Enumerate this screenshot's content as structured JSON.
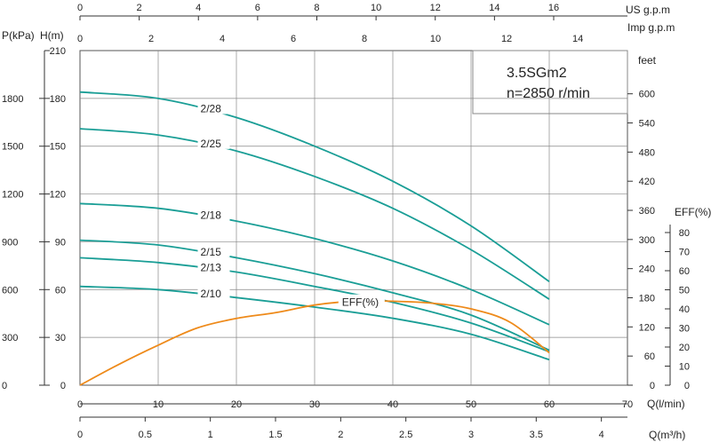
{
  "chart_data": {
    "type": "line",
    "model": "3.5SGm2",
    "speed": "n=2850 r/min",
    "x_primary": {
      "label": "Q(l/min)",
      "range": [
        0,
        70
      ],
      "ticks": [
        "0",
        "10",
        "20",
        "30",
        "40",
        "50",
        "60",
        "70"
      ]
    },
    "x_m3h": {
      "label": "Q(m³/h)",
      "range": [
        0,
        4.2
      ],
      "ticks": [
        "0",
        "0.5",
        "1",
        "1.5",
        "2",
        "2.5",
        "3",
        "3.5",
        "4"
      ]
    },
    "x_us": {
      "label": "US  g.p.m",
      "range": [
        0,
        18.5
      ],
      "ticks": [
        "0",
        "2",
        "4",
        "6",
        "8",
        "10",
        "12",
        "14",
        "16"
      ]
    },
    "x_imp": {
      "label": "Imp  g.p.m",
      "range": [
        0,
        15.4
      ],
      "ticks": [
        "0",
        "2",
        "4",
        "6",
        "8",
        "10",
        "12",
        "14"
      ]
    },
    "y_head_m": {
      "label": "H(m)",
      "range": [
        0,
        210
      ],
      "ticks": [
        "0",
        "30",
        "60",
        "90",
        "120",
        "150",
        "180",
        "210"
      ]
    },
    "y_kpa": {
      "label": "P(kPa)",
      "ticks": [
        "0",
        "300",
        "600",
        "900",
        "1200",
        "1500",
        "1800"
      ]
    },
    "y_feet": {
      "label": "feet",
      "ticks": [
        "0",
        "60",
        "120",
        "180",
        "240",
        "300",
        "360",
        "420",
        "480",
        "540",
        "600"
      ]
    },
    "y_eff": {
      "label": "EFF(%)",
      "range": [
        0,
        80
      ],
      "ticks": [
        "0",
        "10",
        "20",
        "30",
        "40",
        "50",
        "60",
        "70",
        "80"
      ]
    },
    "series": [
      {
        "name": "2/28",
        "q": [
          0,
          10,
          20,
          30,
          40,
          50,
          60
        ],
        "h": [
          184,
          180,
          168,
          150,
          128,
          100,
          65
        ]
      },
      {
        "name": "2/25",
        "q": [
          0,
          10,
          20,
          30,
          40,
          50,
          60
        ],
        "h": [
          161,
          157,
          147,
          131,
          111,
          85,
          54
        ]
      },
      {
        "name": "2/18",
        "q": [
          0,
          10,
          20,
          30,
          40,
          50,
          60
        ],
        "h": [
          114,
          111,
          103,
          92,
          78,
          60,
          38
        ]
      },
      {
        "name": "2/15",
        "q": [
          0,
          10,
          20,
          30,
          40,
          50,
          60
        ],
        "h": [
          91,
          88,
          80,
          70,
          58,
          44,
          22
        ]
      },
      {
        "name": "2/13",
        "q": [
          0,
          10,
          20,
          30,
          40,
          50,
          60
        ],
        "h": [
          80,
          77,
          71,
          62,
          52,
          39,
          21
        ]
      },
      {
        "name": "2/10",
        "q": [
          0,
          10,
          20,
          30,
          40,
          50,
          60
        ],
        "h": [
          62,
          60,
          55,
          49,
          42,
          32,
          16
        ]
      }
    ],
    "efficiency": {
      "name": "EFF(%)",
      "q": [
        0,
        5,
        10,
        15,
        20,
        25,
        30,
        35,
        40,
        45,
        50,
        55,
        60
      ],
      "eff": [
        0,
        11,
        21,
        30,
        35,
        38,
        42,
        44,
        44,
        43,
        40,
        33,
        17
      ]
    }
  },
  "colors": {
    "curve": "#1a9e96",
    "eff": "#ee8a1a",
    "grid": "#888888"
  }
}
